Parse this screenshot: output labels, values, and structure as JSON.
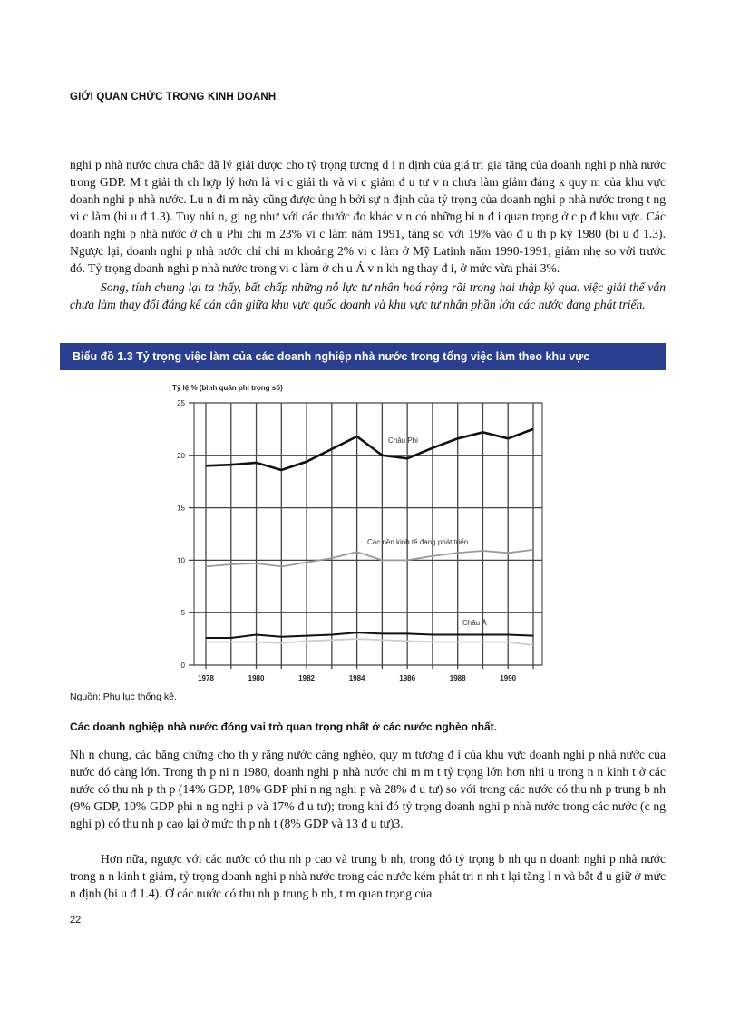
{
  "header": "GIỚI QUAN CHỨC TRONG KINH DOANH",
  "para1": "nghi p nhà nước chưa chắc đã lý giải được cho tỷ trọng tương đ i n định của giá trị gia tăng của doanh nghi p nhà nước trong GDP. M t giải th ch hợp lý hơn là vi c giải th và vi c giảm đ u tư v n chưa làm giảm đáng k quy m của khu vực doanh nghi p nhà nước. Lu n đi m này cũng được ủng h bởi sự n định của tỷ trọng của doanh nghi p nhà nước trong t ng vi c làm (bi u đ 1.3). Tuy nhi n, gi ng như với các thước đo khác v n có những bi n đ i quan trọng ở c p đ khu vực. Các doanh nghi p nhà nước ở ch u Phi chi m 23% vi c làm năm 1991, tăng so với 19% vào đ u th p kỷ 1980 (bi u đ 1.3). Ngược lại, doanh nghi p nhà nước chỉ chi m khoảng 2% vi c làm ở Mỹ Latinh năm 1990-1991, giảm nhẹ so với trước đó. Tỷ trọng doanh nghi p nhà nước trong vi c làm ở ch u Á v n kh ng thay đ i, ở mức vừa phải 3%.",
  "para2": "Song, tính chung lại ta thấy, bất chấp những nỗ lực tư nhân hoá rộng rãi trong hai thập kỷ qua. việc giải thể vẫn chưa làm thay đổi đáng kể cán cân giữa khu vực quốc doanh và khu vực tư nhân phần lớn các nước đang phát triển.",
  "figure_title": "Biểu đồ 1.3 Tỷ trọng việc làm của các doanh nghiệp nhà nước trong tổng việc làm theo khu vực",
  "source": "Nguồn: Phụ lục thống kê.",
  "heading": "Các doanh nghiệp nhà nước đóng vai trò quan trọng nhất ở các nước nghèo nhất.",
  "para3": "Nh n chung, các bằng chứng cho th y rằng nước càng nghèo, quy m tương đ i của khu vực doanh nghi p nhà nước của nước đó càng lớn. Trong th p ni n 1980, doanh nghi p nhà nước chi m m t tỷ trọng lớn hơn nhi u trong n n kinh t ở các nước có thu nh p th p (14% GDP, 18% GDP phi n ng nghi p và 28% đ u tư) so với trong các nước có thu nh p trung b nh (9% GDP, 10% GDP phi n ng nghi p và 17% đ u tư); trong khi đó tỷ trọng doanh nghi p nhà nước trong các nước (c ng nghi p) có thu nh p cao lại ở mức th p nh t (8% GDP và 13 đ u tư)3.",
  "para4": "Hơn nữa, ngược với các nước có thu nh p cao và trung b nh, trong đó tỷ trọng b nh qu n doanh nghi p nhà nước trong n n kinh t giảm, tỷ trọng doanh nghi p nhà nước trong các nước kém phát tri n nh t lại tăng l n và bắt đ u giữ ở mức n định (bi u đ 1.4). Ở các nước có thu nh p trung b nh, t m quan trọng của",
  "page_number": "22",
  "colors": {
    "banner": "#2b3f8f"
  },
  "chart_data": {
    "type": "line",
    "ylabel": "Tỷ lệ % (bình quân phi trọng số)",
    "x": [
      1978,
      1979,
      1980,
      1981,
      1982,
      1983,
      1984,
      1985,
      1986,
      1987,
      1988,
      1989,
      1990,
      1991
    ],
    "xticks": [
      "1978",
      "1980",
      "1982",
      "1984",
      "1986",
      "1988",
      "1990"
    ],
    "yticks": [
      "0",
      "5",
      "10",
      "15",
      "20",
      "25"
    ],
    "ylim": [
      0,
      25
    ],
    "grid": true,
    "series": [
      {
        "name": "Châu Phi",
        "color": "#111111",
        "values": [
          19.0,
          19.1,
          19.3,
          18.6,
          19.4,
          20.6,
          21.8,
          20.0,
          19.7,
          20.7,
          21.6,
          22.2,
          21.6,
          22.5
        ]
      },
      {
        "name": "Các nền kinh tế đang phát triển",
        "color": "#999999",
        "values": [
          9.4,
          9.6,
          9.7,
          9.4,
          9.8,
          10.2,
          10.8,
          10.0,
          10.0,
          10.4,
          10.7,
          10.9,
          10.7,
          11.0
        ]
      },
      {
        "name": "Châu Á",
        "color": "#111111",
        "values": [
          2.6,
          2.6,
          2.9,
          2.7,
          2.8,
          2.9,
          3.1,
          3.0,
          3.0,
          2.9,
          2.9,
          2.9,
          2.9,
          2.8
        ]
      },
      {
        "color": "#cccccc",
        "values": [
          2.2,
          2.2,
          2.2,
          2.1,
          2.3,
          2.4,
          2.5,
          2.4,
          2.3,
          2.2,
          2.2,
          2.2,
          2.2,
          1.9
        ]
      }
    ]
  }
}
